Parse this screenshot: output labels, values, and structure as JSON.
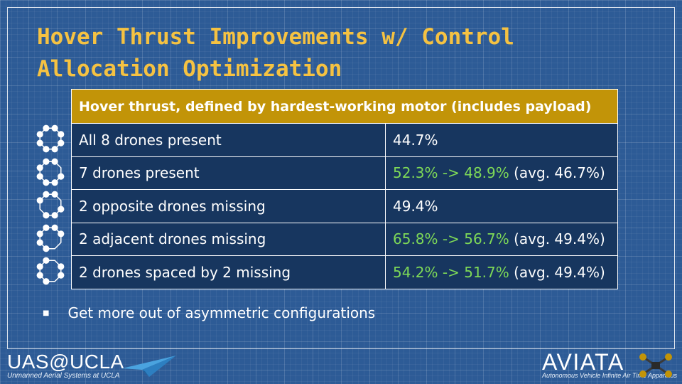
{
  "slide": {
    "title": "Hover Thrust Improvements w/ Control Allocation Optimization"
  },
  "table": {
    "header": "Hover thrust, defined by hardest-working motor (includes payload)",
    "rows": [
      {
        "config": "All 8 drones present",
        "value_change": "",
        "value_rest": "44.7%",
        "missing_positions": []
      },
      {
        "config": "7 drones present",
        "value_change": "52.3% -> 48.9%",
        "value_rest": " (avg. 46.7%)",
        "missing_positions": [
          1
        ]
      },
      {
        "config": "2 opposite drones missing",
        "value_change": "",
        "value_rest": "49.4%",
        "missing_positions": [
          1,
          5
        ]
      },
      {
        "config": "2 adjacent drones missing",
        "value_change": "65.8% -> 56.7%",
        "value_rest": " (avg. 49.4%)",
        "missing_positions": [
          2,
          3
        ]
      },
      {
        "config": "2 drones spaced by 2 missing",
        "value_change": "54.2% -> 51.7%",
        "value_rest": " (avg. 49.4%)",
        "missing_positions": [
          0,
          3
        ]
      }
    ]
  },
  "bullets": [
    "Get more out of asymmetric configurations"
  ],
  "footer": {
    "left_logo": "UAS@UCLA",
    "left_sub": "Unmanned Aerial Systems at UCLA",
    "right_logo": "AVIATA",
    "right_sub": "Autonomous Vehicle Infinite Air Time Apparatus"
  },
  "colors": {
    "title": "#f5c242",
    "header_bg": "#c29408",
    "cell_bg": "#17365f",
    "highlight": "#7ed957"
  }
}
